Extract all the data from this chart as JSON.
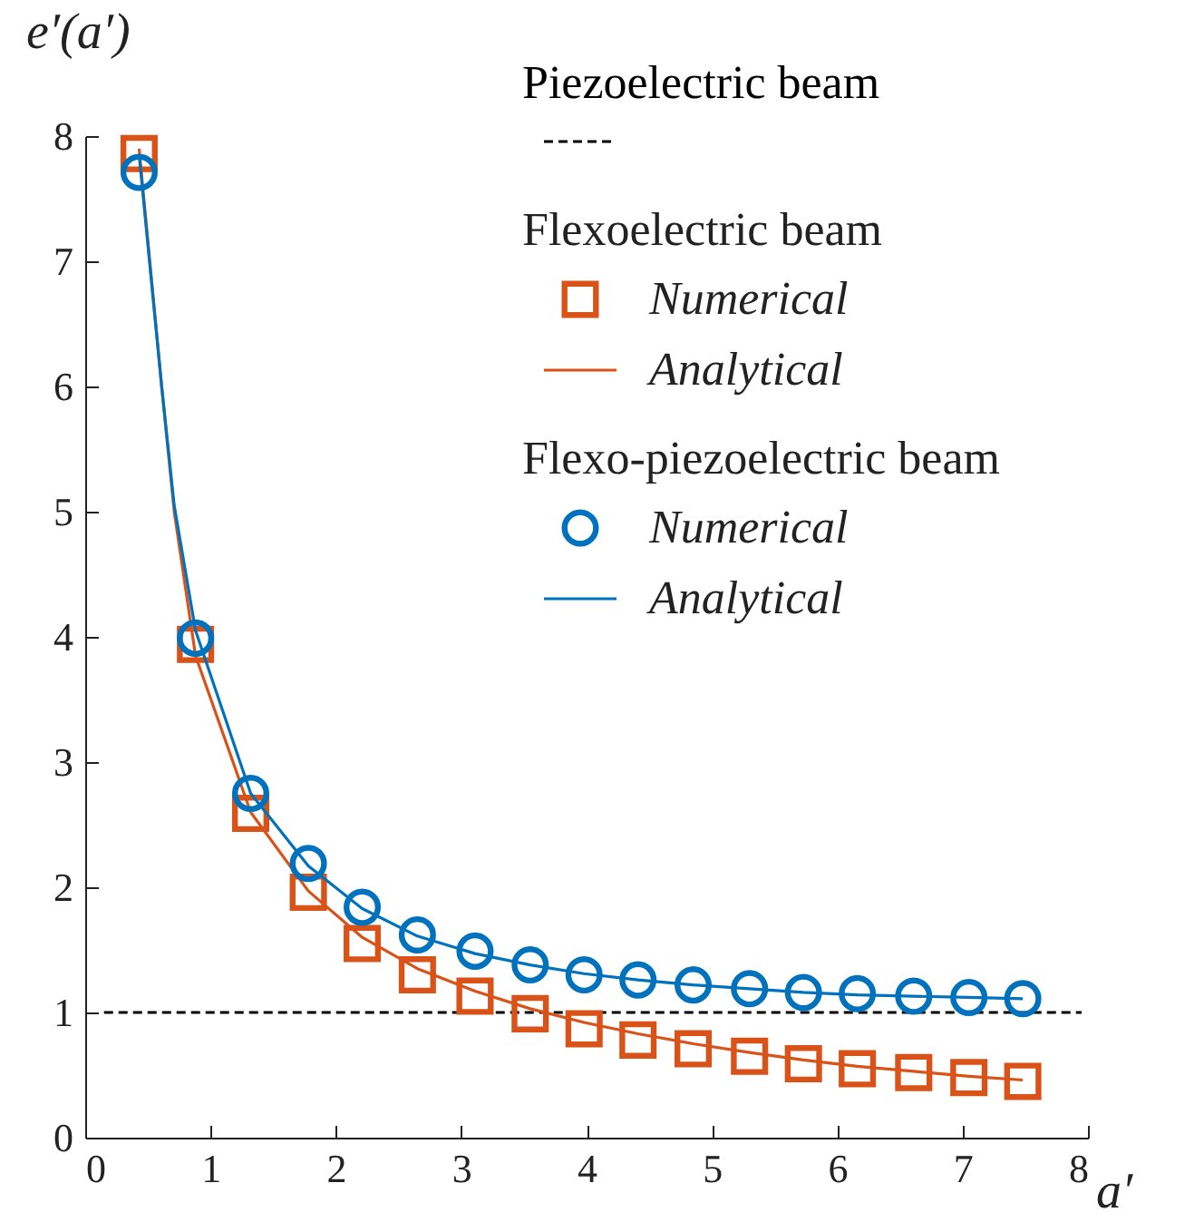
{
  "chart_data": {
    "type": "line",
    "xlabel": "a′",
    "ylabel": "e′(a′)",
    "xlim": [
      0,
      8
    ],
    "ylim": [
      0,
      8
    ],
    "xticks": [
      0,
      1,
      2,
      3,
      4,
      5,
      6,
      7,
      8
    ],
    "yticks": [
      0,
      1,
      2,
      3,
      4,
      5,
      6,
      7,
      8
    ],
    "legend": "top right",
    "annotations": [
      "Flexoelectric beam",
      "Flexo-piezoelectric beam"
    ],
    "series": [
      {
        "name": "Piezoelectric beam",
        "line_style": "dashed",
        "color": "#000000",
        "x": [
          0.15,
          7.95
        ],
        "values": [
          1,
          1
        ]
      },
      {
        "name": "Numerical",
        "type": "scatter",
        "marker": "square",
        "color": "#d95319",
        "x": [
          0.43,
          0.88,
          1.32,
          1.78,
          2.21,
          2.65,
          3.11,
          3.55,
          3.98,
          4.41,
          4.85,
          5.3,
          5.73,
          6.16,
          6.61,
          7.05,
          7.48
        ],
        "values": [
          7.86,
          3.94,
          2.59,
          1.96,
          1.55,
          1.3,
          1.13,
          0.99,
          0.87,
          0.78,
          0.71,
          0.65,
          0.59,
          0.55,
          0.52,
          0.48,
          0.45
        ]
      },
      {
        "name": "Analytical",
        "color": "#d95319",
        "x": [
          0.43,
          0.61,
          0.71,
          0.88,
          1.32,
          1.78,
          2.21,
          2.65,
          3.11,
          3.55,
          3.98,
          4.41,
          4.85,
          5.3,
          5.73,
          6.16,
          6.61,
          7.05,
          7.48
        ],
        "values": [
          7.9,
          6.0,
          5.0,
          3.85,
          2.6,
          1.97,
          1.6,
          1.35,
          1.17,
          1.03,
          0.92,
          0.83,
          0.75,
          0.68,
          0.62,
          0.57,
          0.53,
          0.49,
          0.46
        ]
      },
      {
        "name": "Numerical",
        "type": "scatter",
        "marker": "circle",
        "color": "#0072bd",
        "x": [
          0.43,
          0.88,
          1.32,
          1.78,
          2.21,
          2.65,
          3.11,
          3.55,
          3.98,
          4.41,
          4.85,
          5.3,
          5.73,
          6.16,
          6.61,
          7.05,
          7.48
        ],
        "values": [
          7.71,
          3.99,
          2.75,
          2.19,
          1.84,
          1.62,
          1.49,
          1.38,
          1.3,
          1.26,
          1.22,
          1.19,
          1.16,
          1.15,
          1.13,
          1.12,
          1.11
        ]
      },
      {
        "name": "Analytical",
        "color": "#0072bd",
        "x": [
          0.43,
          0.61,
          0.71,
          0.88,
          1.32,
          1.78,
          2.21,
          2.65,
          3.11,
          3.55,
          3.98,
          4.41,
          4.85,
          5.3,
          5.73,
          6.16,
          6.61,
          7.05,
          7.48
        ],
        "values": [
          7.85,
          6.0,
          5.05,
          4.05,
          2.75,
          2.17,
          1.83,
          1.61,
          1.47,
          1.38,
          1.31,
          1.26,
          1.22,
          1.19,
          1.16,
          1.14,
          1.13,
          1.12,
          1.11
        ]
      }
    ]
  }
}
